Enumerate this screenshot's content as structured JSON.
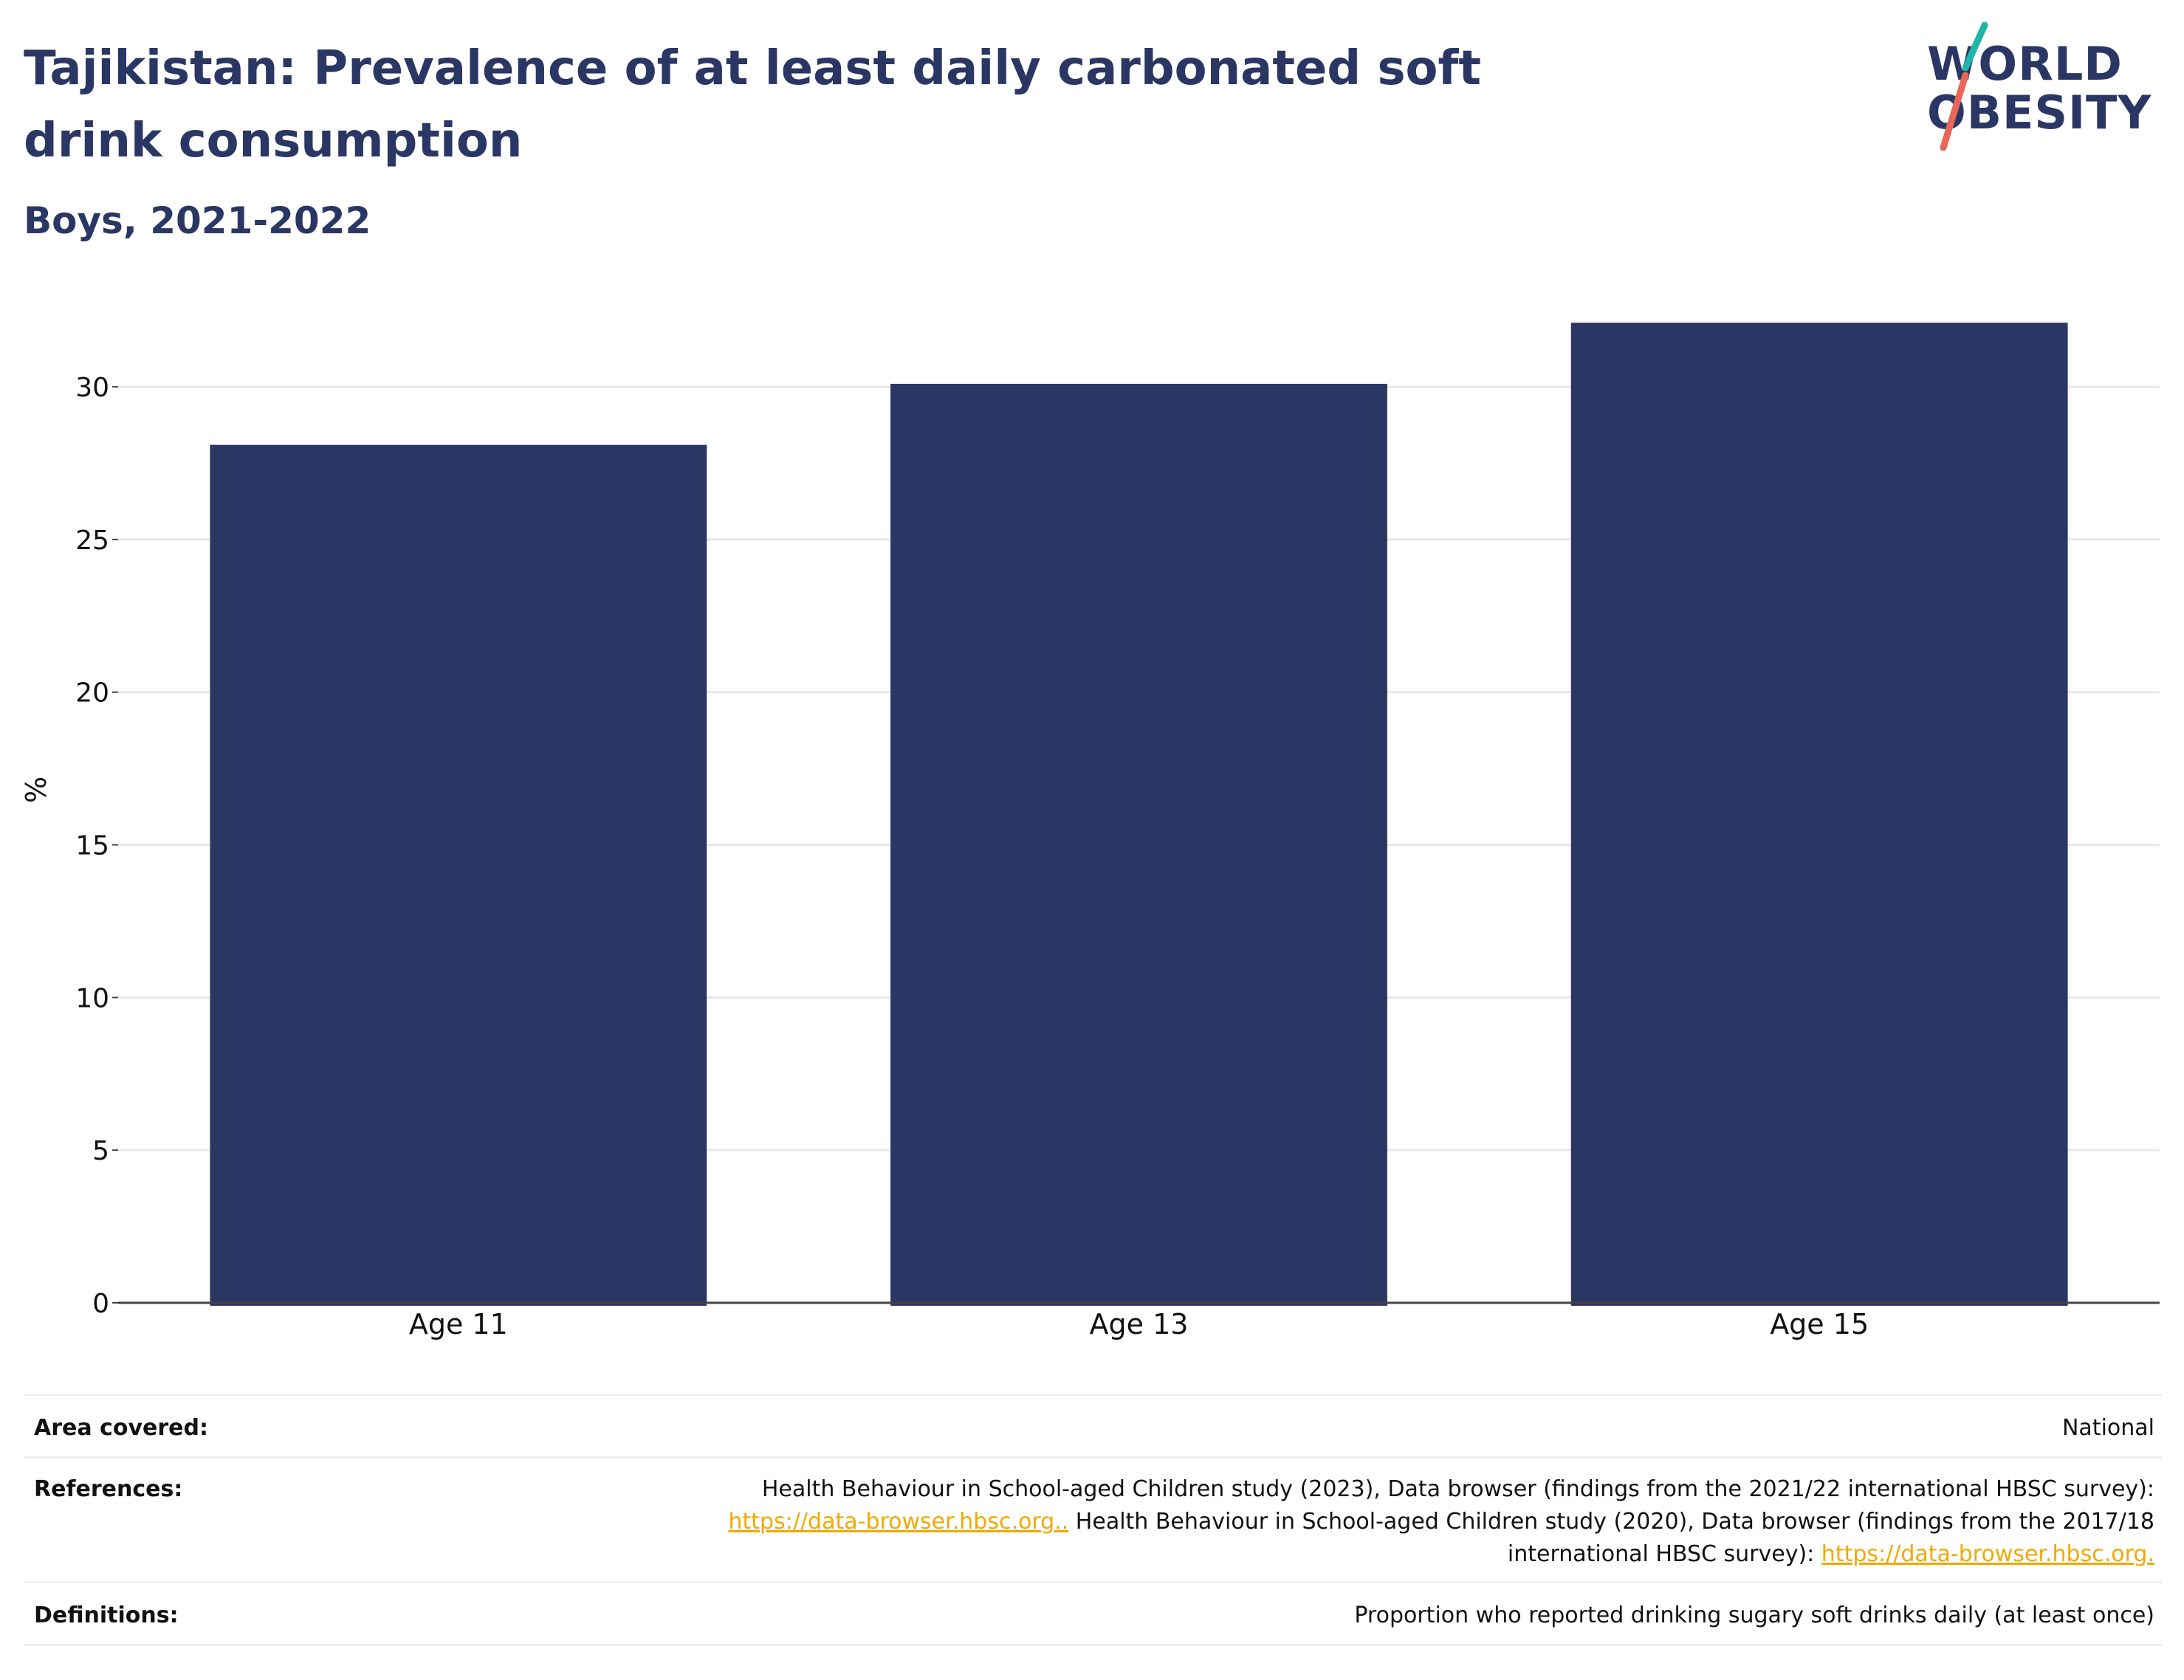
{
  "header": {
    "title": "Tajikistan: Prevalence of at least daily carbonated soft drink consumption",
    "subtitle": "Boys, 2021-2022"
  },
  "logo": {
    "line1": "WORLD",
    "line2": "OBESITY",
    "accent_colors": [
      "#1fb5a8",
      "#e8665a"
    ]
  },
  "chart_data": {
    "type": "bar",
    "categories": [
      "Age 11",
      "Age 13",
      "Age 15"
    ],
    "values": [
      28.1,
      30.1,
      32.1
    ],
    "ylabel": "%",
    "xlabel": "",
    "ylim": [
      0,
      33
    ],
    "yticks": [
      0,
      5,
      10,
      15,
      20,
      25,
      30
    ],
    "grid": true,
    "bar_color": "#2a3663"
  },
  "footer": {
    "area_label": "Area covered:",
    "area_value": "National",
    "references_label": "References:",
    "references": {
      "text1": "Health Behaviour in School-aged Children study (2023), Data browser (findings from the 2021/22 international HBSC survey):",
      "link1": "https://data-browser.hbsc.org..",
      "text2": " Health Behaviour in School-aged Children study (2020), Data browser (findings from the 2017/18",
      "text3": "international HBSC survey): ",
      "link2": "https://data-browser.hbsc.org."
    },
    "definitions_label": "Definitions:",
    "definitions_value": "Proportion who reported drinking sugary soft drinks daily (at least once)"
  },
  "colors": {
    "primary": "#2a3663",
    "link": "#f2a900",
    "grid": "#e8e8ee",
    "axis": "#444444"
  }
}
